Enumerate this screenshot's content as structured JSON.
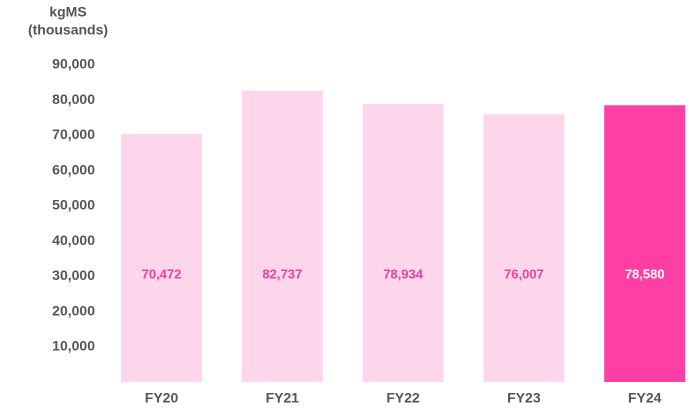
{
  "chart_data": {
    "type": "bar",
    "ylabel": [
      "kgMS",
      "(thousands)"
    ],
    "categories": [
      "FY20",
      "FY21",
      "FY22",
      "FY23",
      "FY24"
    ],
    "values": [
      70472,
      82737,
      78934,
      76007,
      78580
    ],
    "value_labels": [
      "70,472",
      "82,737",
      "78,934",
      "76,007",
      "78,580"
    ],
    "colors": [
      "#fdd6ec",
      "#fdd6ec",
      "#fdd6ec",
      "#fdd6ec",
      "#ff3fa4"
    ],
    "label_colors": [
      "#f0409f",
      "#f0409f",
      "#f0409f",
      "#f0409f",
      "#ffffff"
    ],
    "ylim": [
      0,
      90000
    ],
    "yticks": [
      {
        "value": 10000,
        "label": "10,000"
      },
      {
        "value": 20000,
        "label": "20,000"
      },
      {
        "value": 30000,
        "label": "30,000"
      },
      {
        "value": 40000,
        "label": "40,000"
      },
      {
        "value": 50000,
        "label": "50,000"
      },
      {
        "value": 60000,
        "label": "60,000"
      },
      {
        "value": 70000,
        "label": "70,000"
      },
      {
        "value": 80000,
        "label": "80,000"
      },
      {
        "value": 90000,
        "label": "90,000"
      }
    ],
    "grid": false
  }
}
